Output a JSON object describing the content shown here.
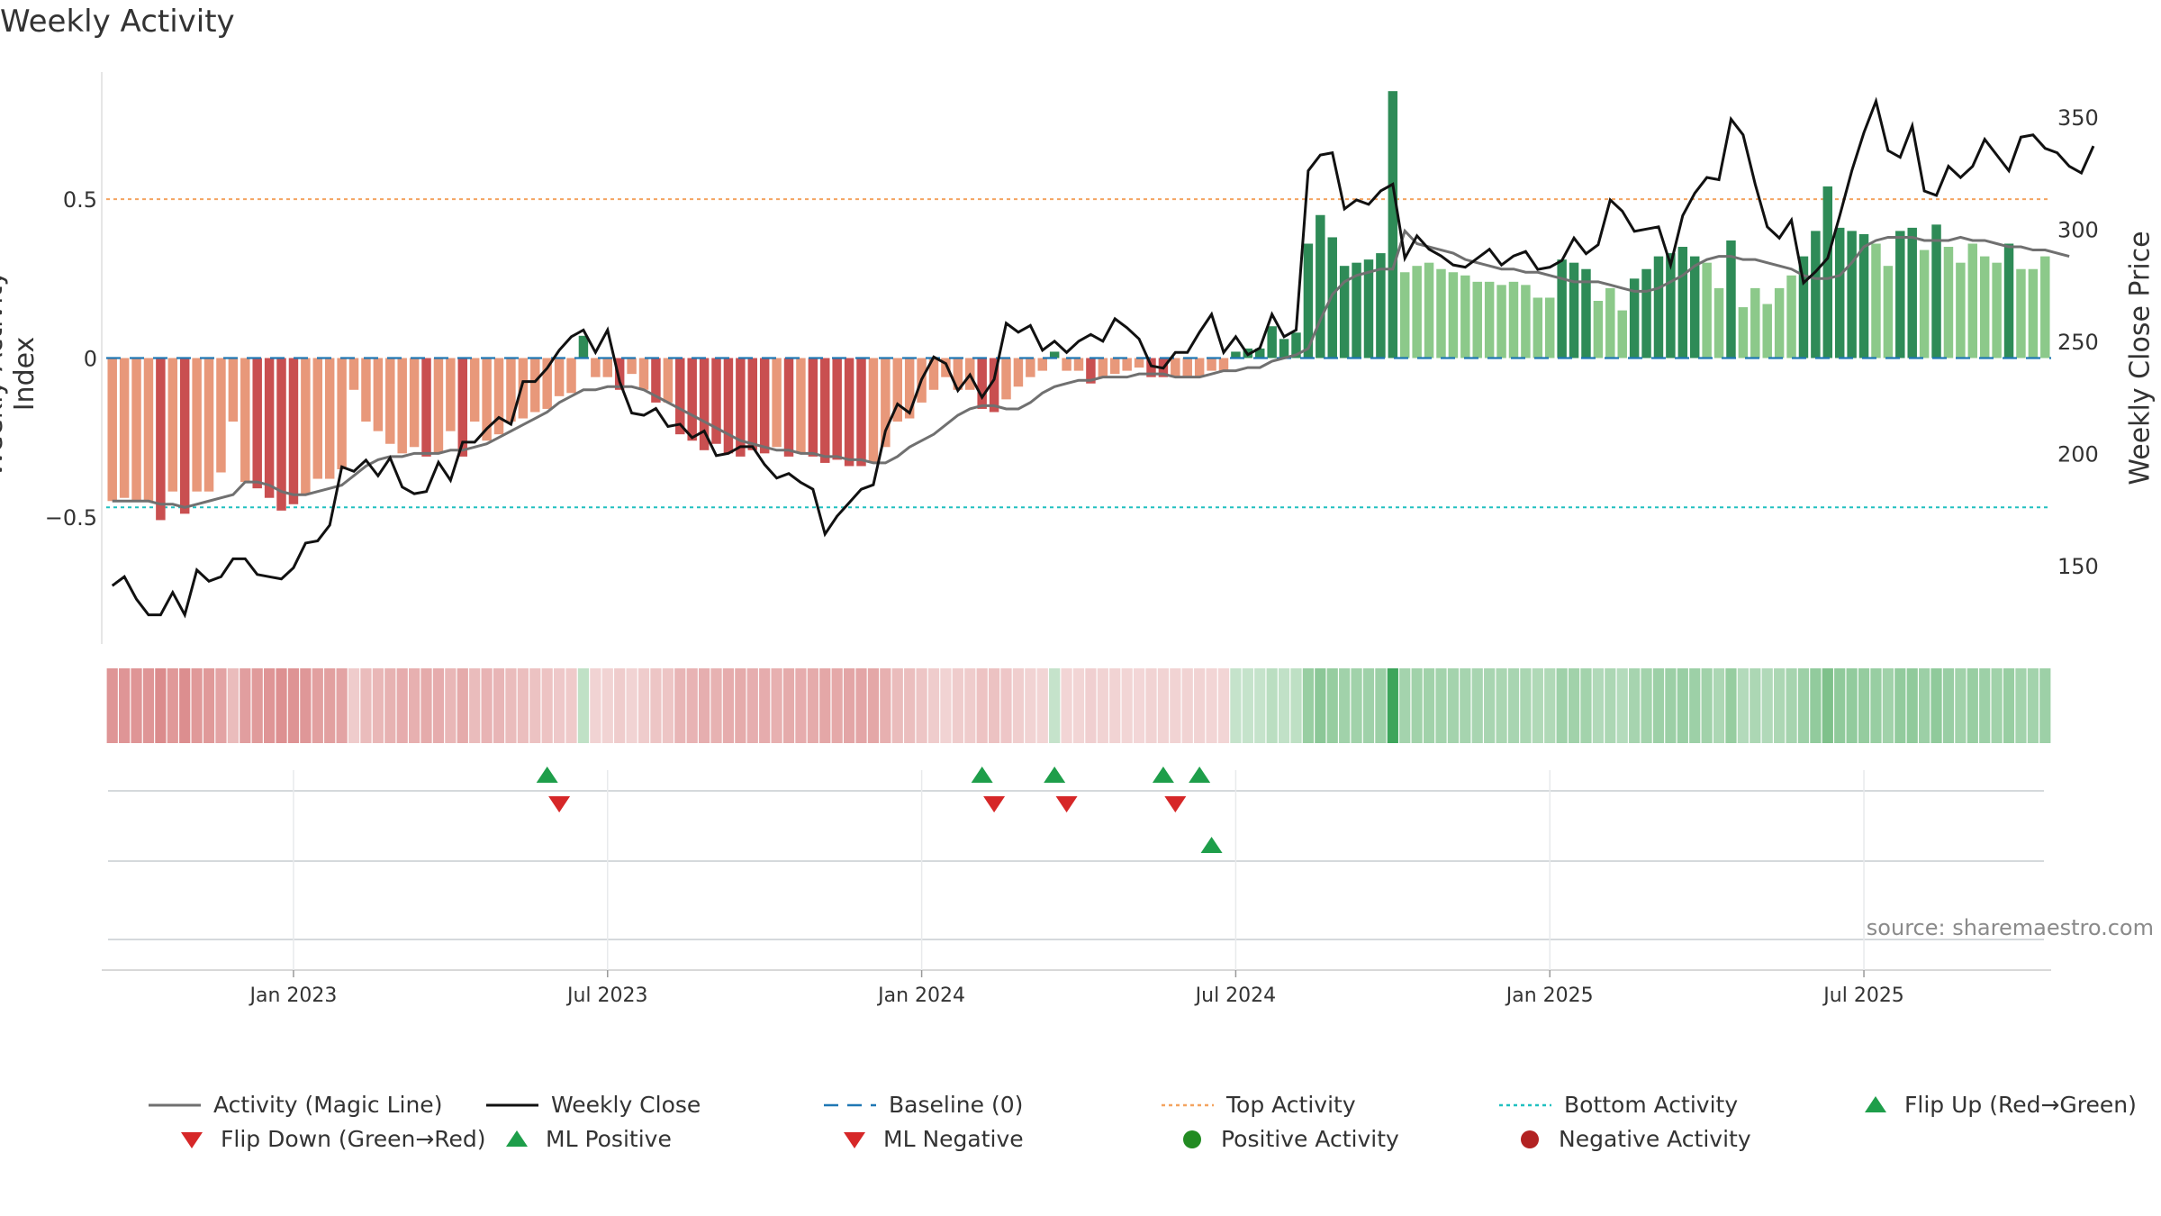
{
  "title": "Weekly Activity",
  "source": "source: sharemaestro.com",
  "axes": {
    "left_title": "Weekly Activity Index",
    "right_title": "Weekly Close Price"
  },
  "colors": {
    "pos_dark": "#2e8b57",
    "pos_light": "#8cc98a",
    "neg_dark": "#c94f50",
    "neg_light": "#e8987a",
    "top_line": "#f4a460",
    "bottom_line": "#20c0c0",
    "baseline": "#1f77b4",
    "magic": "#707070",
    "close": "#111111",
    "flip_up": "#1e9e4a",
    "flip_down": "#d62728"
  },
  "legend": [
    {
      "kind": "line-gray",
      "label": "Activity (Magic Line)"
    },
    {
      "kind": "line-black",
      "label": "Weekly Close"
    },
    {
      "kind": "dash-blue",
      "label": "Baseline (0)"
    },
    {
      "kind": "dot-orange",
      "label": "Top Activity"
    },
    {
      "kind": "dot-cyan",
      "label": "Bottom Activity"
    },
    {
      "kind": "tri-up-green",
      "label": "Flip Up (Red→Green)"
    },
    {
      "kind": "tri-down-red",
      "label": "Flip Down (Green→Red)"
    },
    {
      "kind": "tri-up-green",
      "label": "ML Positive"
    },
    {
      "kind": "tri-down-red",
      "label": "ML Negative"
    },
    {
      "kind": "circle-green",
      "label": "Positive Activity"
    },
    {
      "kind": "circle-red",
      "label": "Negative Activity"
    }
  ],
  "chart_data": {
    "type": "bar",
    "title": "Weekly Activity",
    "xlabel": "",
    "ylabel_left": "Weekly Activity Index",
    "ylabel_right": "Weekly Close Price",
    "ylim_left": [
      -0.9,
      0.9
    ],
    "ylim_right": [
      115,
      370
    ],
    "yticks_left": [
      {
        "v": 0.5,
        "label": "0.5"
      },
      {
        "v": 0,
        "label": "0"
      },
      {
        "v": -0.5,
        "label": "−0.5"
      }
    ],
    "yticks_right": [
      {
        "v": 150,
        "label": "150"
      },
      {
        "v": 200,
        "label": "200"
      },
      {
        "v": 250,
        "label": "250"
      },
      {
        "v": 300,
        "label": "300"
      },
      {
        "v": 350,
        "label": "350"
      }
    ],
    "xticks": [
      {
        "week": 15,
        "label": "Jan 2023"
      },
      {
        "week": 41,
        "label": "Jul 2023"
      },
      {
        "week": 67,
        "label": "Jan 2024"
      },
      {
        "week": 93,
        "label": "Jul 2024"
      },
      {
        "week": 119,
        "label": "Jan 2025"
      },
      {
        "week": 145,
        "label": "Jul 2025"
      }
    ],
    "reference_lines": {
      "top": 0.5,
      "bottom": -0.47,
      "baseline": 0
    },
    "start_week_label": "Aug 2022",
    "activity": [
      -0.45,
      -0.44,
      -0.45,
      -0.45,
      -0.51,
      -0.42,
      -0.49,
      -0.42,
      -0.42,
      -0.36,
      -0.2,
      -0.39,
      -0.41,
      -0.44,
      -0.48,
      -0.46,
      -0.43,
      -0.38,
      -0.38,
      -0.35,
      -0.1,
      -0.2,
      -0.23,
      -0.27,
      -0.3,
      -0.28,
      -0.31,
      -0.3,
      -0.23,
      -0.31,
      -0.2,
      -0.26,
      -0.24,
      -0.2,
      -0.19,
      -0.17,
      -0.16,
      -0.12,
      -0.11,
      0.07,
      -0.06,
      -0.06,
      -0.1,
      -0.05,
      -0.1,
      -0.14,
      -0.14,
      -0.24,
      -0.26,
      -0.29,
      -0.27,
      -0.3,
      -0.31,
      -0.29,
      -0.3,
      -0.28,
      -0.31,
      -0.3,
      -0.31,
      -0.33,
      -0.32,
      -0.34,
      -0.34,
      -0.33,
      -0.28,
      -0.2,
      -0.19,
      -0.14,
      -0.1,
      -0.06,
      -0.1,
      -0.1,
      -0.16,
      -0.17,
      -0.13,
      -0.09,
      -0.06,
      -0.04,
      0.02,
      -0.04,
      -0.04,
      -0.08,
      -0.06,
      -0.05,
      -0.04,
      -0.03,
      -0.06,
      -0.06,
      -0.06,
      -0.06,
      -0.06,
      -0.04,
      -0.04,
      0.02,
      0.03,
      0.03,
      0.1,
      0.06,
      0.08,
      0.36,
      0.45,
      0.38,
      0.29,
      0.3,
      0.31,
      0.33,
      0.84,
      0.27,
      0.29,
      0.3,
      0.28,
      0.27,
      0.26,
      0.24,
      0.24,
      0.23,
      0.24,
      0.23,
      0.19,
      0.19,
      0.31,
      0.3,
      0.28,
      0.18,
      0.22,
      0.15,
      0.25,
      0.28,
      0.32,
      0.33,
      0.35,
      0.32,
      0.3,
      0.22,
      0.37,
      0.16,
      0.22,
      0.17,
      0.22,
      0.26,
      0.32,
      0.4,
      0.54,
      0.41,
      0.4,
      0.39,
      0.36,
      0.29,
      0.4,
      0.41,
      0.34,
      0.42,
      0.35,
      0.3,
      0.36,
      0.32,
      0.3,
      0.36,
      0.28,
      0.28,
      0.32
    ],
    "magic_line": [
      -0.45,
      -0.45,
      -0.45,
      -0.45,
      -0.46,
      -0.46,
      -0.47,
      -0.46,
      -0.45,
      -0.44,
      -0.43,
      -0.39,
      -0.39,
      -0.4,
      -0.42,
      -0.43,
      -0.43,
      -0.42,
      -0.41,
      -0.4,
      -0.37,
      -0.34,
      -0.32,
      -0.31,
      -0.31,
      -0.3,
      -0.3,
      -0.3,
      -0.29,
      -0.29,
      -0.28,
      -0.27,
      -0.25,
      -0.23,
      -0.21,
      -0.19,
      -0.17,
      -0.14,
      -0.12,
      -0.1,
      -0.1,
      -0.09,
      -0.09,
      -0.09,
      -0.1,
      -0.12,
      -0.14,
      -0.16,
      -0.18,
      -0.2,
      -0.22,
      -0.24,
      -0.26,
      -0.27,
      -0.28,
      -0.29,
      -0.29,
      -0.3,
      -0.3,
      -0.31,
      -0.31,
      -0.32,
      -0.32,
      -0.33,
      -0.33,
      -0.31,
      -0.28,
      -0.26,
      -0.24,
      -0.21,
      -0.18,
      -0.16,
      -0.15,
      -0.15,
      -0.16,
      -0.16,
      -0.14,
      -0.11,
      -0.09,
      -0.08,
      -0.07,
      -0.07,
      -0.06,
      -0.06,
      -0.06,
      -0.05,
      -0.05,
      -0.05,
      -0.06,
      -0.06,
      -0.06,
      -0.05,
      -0.04,
      -0.04,
      -0.03,
      -0.03,
      -0.01,
      0.0,
      0.01,
      0.03,
      0.12,
      0.2,
      0.24,
      0.26,
      0.27,
      0.28,
      0.28,
      0.4,
      0.36,
      0.35,
      0.34,
      0.33,
      0.31,
      0.3,
      0.29,
      0.28,
      0.28,
      0.27,
      0.27,
      0.26,
      0.25,
      0.24,
      0.24,
      0.24,
      0.23,
      0.22,
      0.21,
      0.21,
      0.22,
      0.24,
      0.26,
      0.29,
      0.31,
      0.32,
      0.32,
      0.31,
      0.31,
      0.3,
      0.29,
      0.28,
      0.26,
      0.25,
      0.25,
      0.26,
      0.3,
      0.35,
      0.37,
      0.38,
      0.38,
      0.38,
      0.37,
      0.37,
      0.37,
      0.38,
      0.37,
      0.37,
      0.36,
      0.35,
      0.35,
      0.34,
      0.34,
      0.33,
      0.32
    ],
    "close": [
      141,
      145,
      135,
      128,
      128,
      138,
      128,
      148,
      143,
      145,
      153,
      153,
      146,
      145,
      144,
      149,
      160,
      161,
      168,
      194,
      192,
      197,
      190,
      198,
      185,
      182,
      183,
      196,
      188,
      205,
      205,
      211,
      216,
      213,
      232,
      232,
      238,
      246,
      252,
      255,
      245,
      255,
      232,
      218,
      217,
      220,
      212,
      213,
      207,
      210,
      199,
      200,
      203,
      203,
      195,
      189,
      191,
      187,
      184,
      164,
      172,
      178,
      184,
      186,
      210,
      222,
      218,
      233,
      243,
      240,
      228,
      235,
      225,
      233,
      258,
      254,
      257,
      246,
      250,
      245,
      250,
      253,
      250,
      260,
      256,
      251,
      239,
      238,
      245,
      245,
      254,
      262,
      245,
      252,
      244,
      247,
      262,
      252,
      255,
      326,
      333,
      334,
      309,
      313,
      311,
      317,
      320,
      287,
      297,
      291,
      288,
      284,
      283,
      287,
      291,
      284,
      288,
      290,
      282,
      283,
      286,
      296,
      289,
      293,
      313,
      308,
      299,
      300,
      301,
      284,
      306,
      316,
      323,
      322,
      349,
      342,
      320,
      301,
      296,
      304,
      276,
      281,
      287,
      306,
      326,
      343,
      357,
      335,
      332,
      346,
      317,
      315,
      328,
      323,
      328,
      340,
      333,
      326,
      341,
      342,
      336,
      334,
      328,
      325,
      337
    ],
    "flip_up_weeks": [
      36,
      72,
      78,
      87,
      90
    ],
    "flip_down_weeks": [
      37,
      73,
      79,
      88
    ],
    "ml_positive_weeks": [
      91
    ],
    "ml_negative_weeks": []
  }
}
